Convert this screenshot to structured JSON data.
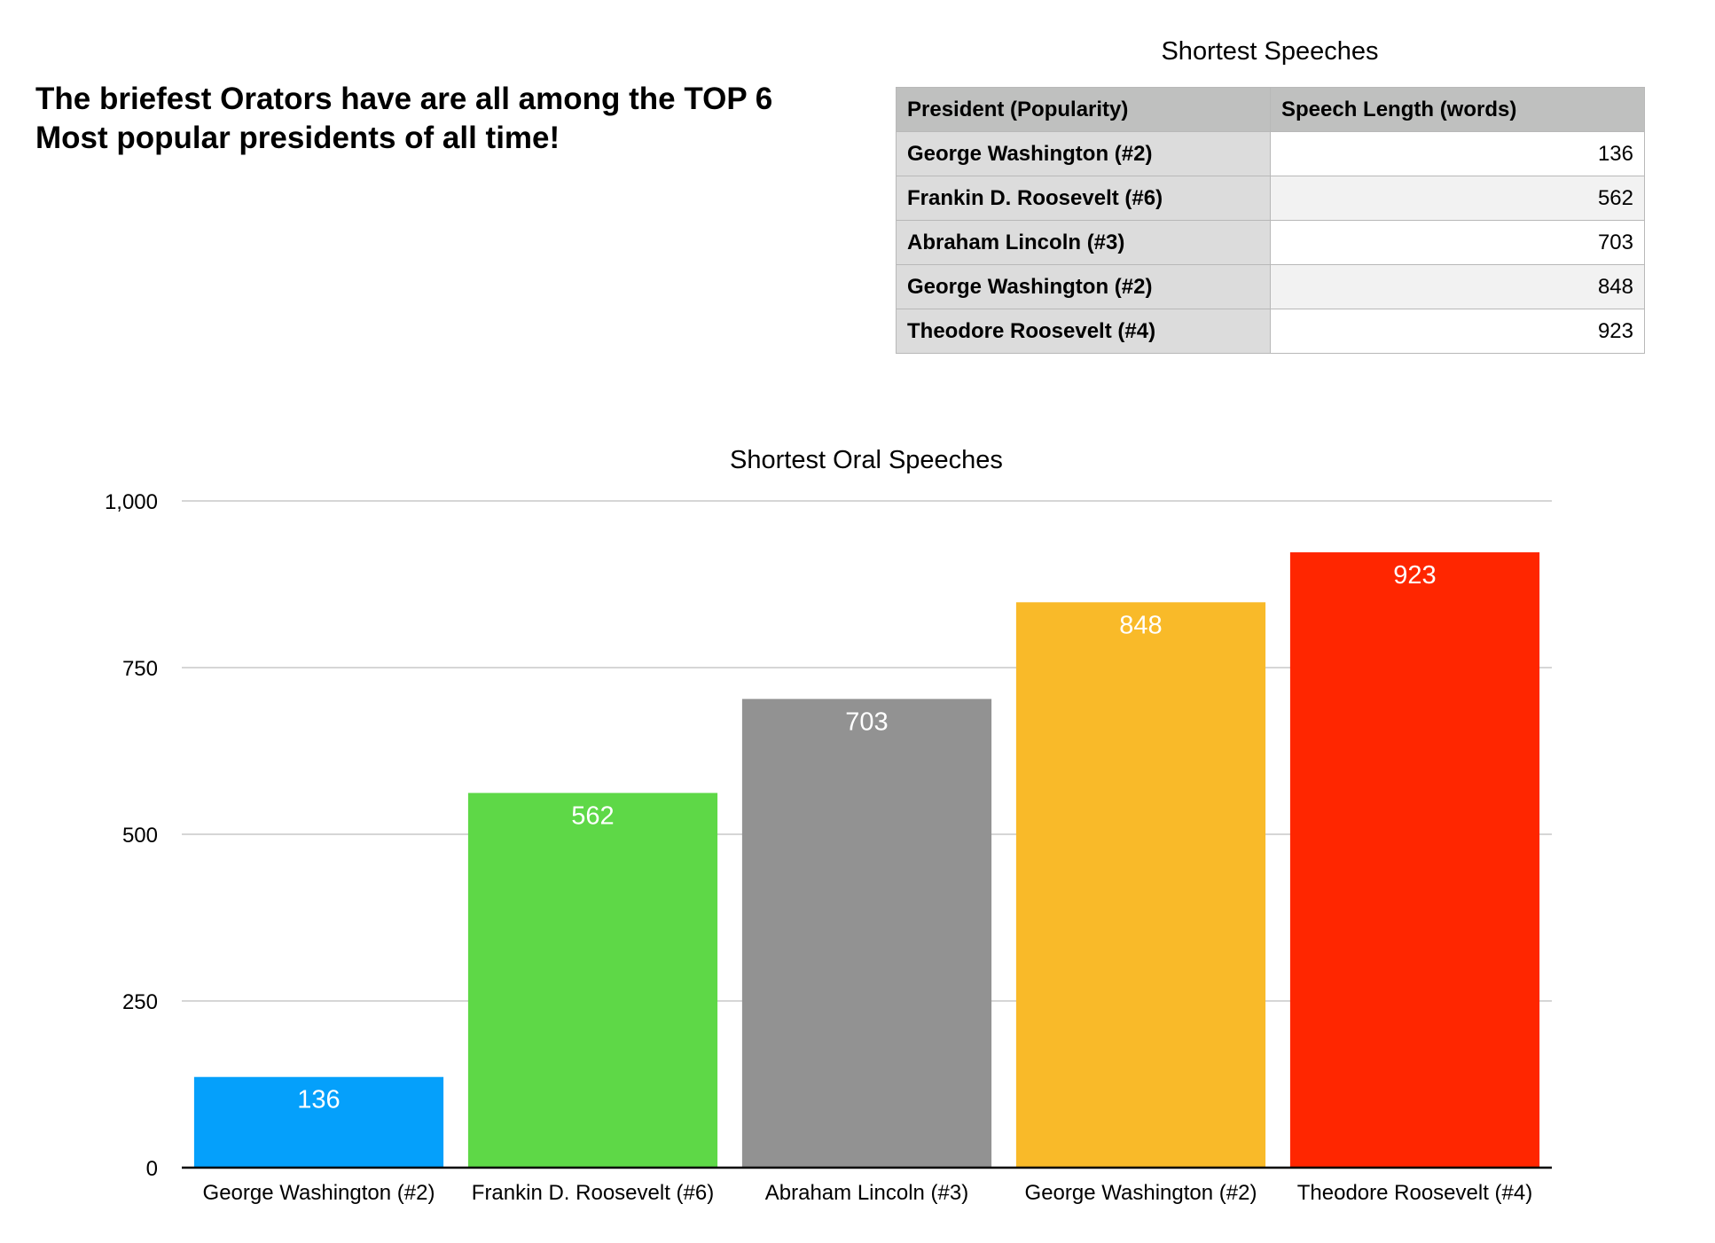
{
  "headline": {
    "line1": "The briefest Orators have are all among the TOP 6",
    "line2": "Most popular presidents of all time!"
  },
  "table": {
    "title": "Shortest Speeches",
    "headers": [
      "President (Popularity)",
      "Speech Length (words)"
    ],
    "rows": [
      {
        "president": "George Washington (#2)",
        "length": "136"
      },
      {
        "president": "Frankin D. Roosevelt (#6)",
        "length": "562"
      },
      {
        "president": "Abraham Lincoln (#3)",
        "length": "703"
      },
      {
        "president": "George Washington (#2)",
        "length": "848"
      },
      {
        "president": "Theodore Roosevelt (#4)",
        "length": "923"
      }
    ]
  },
  "chart_data": {
    "type": "bar",
    "title": "Shortest Oral Speeches",
    "xlabel": "",
    "ylabel": "",
    "categories": [
      "George Washington (#2)",
      "Frankin D. Roosevelt (#6)",
      "Abraham Lincoln (#3)",
      "George Washington (#2)",
      "Theodore Roosevelt (#4)"
    ],
    "values": [
      136,
      562,
      703,
      848,
      923
    ],
    "colors": [
      "#05a0fb",
      "#5ed847",
      "#929292",
      "#f9ba29",
      "#ff2600"
    ],
    "ylim": [
      0,
      1000
    ],
    "yticks": [
      0,
      250,
      500,
      750,
      1000
    ],
    "ytick_labels": [
      "0",
      "250",
      "500",
      "750",
      "1,000"
    ],
    "grid": true,
    "data_labels": [
      "136",
      "562",
      "703",
      "848",
      "923"
    ],
    "data_label_color": "#ffffff",
    "gridline_color": "#c8c8c8",
    "axis_color": "#000000",
    "legend": "none"
  }
}
